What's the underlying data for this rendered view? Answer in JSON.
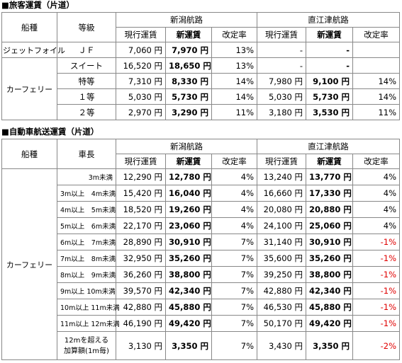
{
  "sections": [
    {
      "title": "■旅客運賃（片道）",
      "header": {
        "type": "船種",
        "class": "等級",
        "routes": [
          "新潟航路",
          "直江津航路"
        ],
        "columns": [
          "現行運賃",
          "新運賃",
          "改定率"
        ]
      },
      "groups": [
        {
          "type": "ジェットフォイル",
          "rows": [
            [
              "ＪＦ",
              "7,060 円",
              "7,970 円",
              "13%",
              "-",
              "-"
            ]
          ]
        },
        {
          "type": "カーフェリー",
          "rows": [
            [
              "スイート",
              "16,520 円",
              "18,650 円",
              "13%",
              "-",
              "-"
            ],
            [
              "特等",
              "7,310 円",
              "8,330 円",
              "14%",
              "7,980 円",
              "9,100 円",
              "14%"
            ],
            [
              "１等",
              "5,030 円",
              "5,730 円",
              "14%",
              "5,030 円",
              "5,730 円",
              "14%"
            ],
            [
              "２等",
              "2,970 円",
              "3,290 円",
              "11%",
              "3,180 円",
              "3,530 円",
              "11%"
            ]
          ]
        }
      ]
    },
    {
      "title": "■自動車航送運賃（片道）",
      "header": {
        "type": "船種",
        "class": "車長",
        "routes": [
          "新潟航路",
          "直江津航路"
        ],
        "columns": [
          "現行運賃",
          "新運賃",
          "改定率"
        ]
      },
      "groups": [
        {
          "type": "カーフェリー",
          "rows": [
            [
              "3m未満",
              "12,290 円",
              "12,780 円",
              "4%",
              "13,240 円",
              "13,770 円",
              "4%"
            ],
            [
              "3m以上　4m未満",
              "15,420 円",
              "16,040 円",
              "4%",
              "16,660 円",
              "17,330 円",
              "4%"
            ],
            [
              "4m以上　5m未満",
              "18,520 円",
              "19,260 円",
              "4%",
              "20,080 円",
              "20,880 円",
              "4%"
            ],
            [
              "5m以上　6m未満",
              "22,170 円",
              "23,060 円",
              "4%",
              "24,100 円",
              "25,060 円",
              "4%"
            ],
            [
              "6m以上　7m未満",
              "28,890 円",
              "30,910 円",
              "7%",
              "31,140 円",
              "30,910 円",
              "-1%"
            ],
            [
              "7m以上　8m未満",
              "32,950 円",
              "35,260 円",
              "7%",
              "35,600 円",
              "35,260 円",
              "-1%"
            ],
            [
              "8m以上　9m未満",
              "36,260 円",
              "38,800 円",
              "7%",
              "39,250 円",
              "38,800 円",
              "-1%"
            ],
            [
              "9m以上 10m未満",
              "39,570 円",
              "42,340 円",
              "7%",
              "42,880 円",
              "42,340 円",
              "-1%"
            ],
            [
              "10m以上 11m未満",
              "42,880 円",
              "45,880 円",
              "7%",
              "46,530 円",
              "45,880 円",
              "-1%"
            ],
            [
              "11m以上 12m未満",
              "46,190 円",
              "49,420 円",
              "7%",
              "50,170 円",
              "49,420 円",
              "-1%"
            ],
            [
              [
                "12mを超える",
                "加算額(1m毎)"
              ],
              "3,130 円",
              "3,350 円",
              "7%",
              "3,430 円",
              "3,350 円",
              "-2%"
            ]
          ]
        }
      ]
    }
  ]
}
